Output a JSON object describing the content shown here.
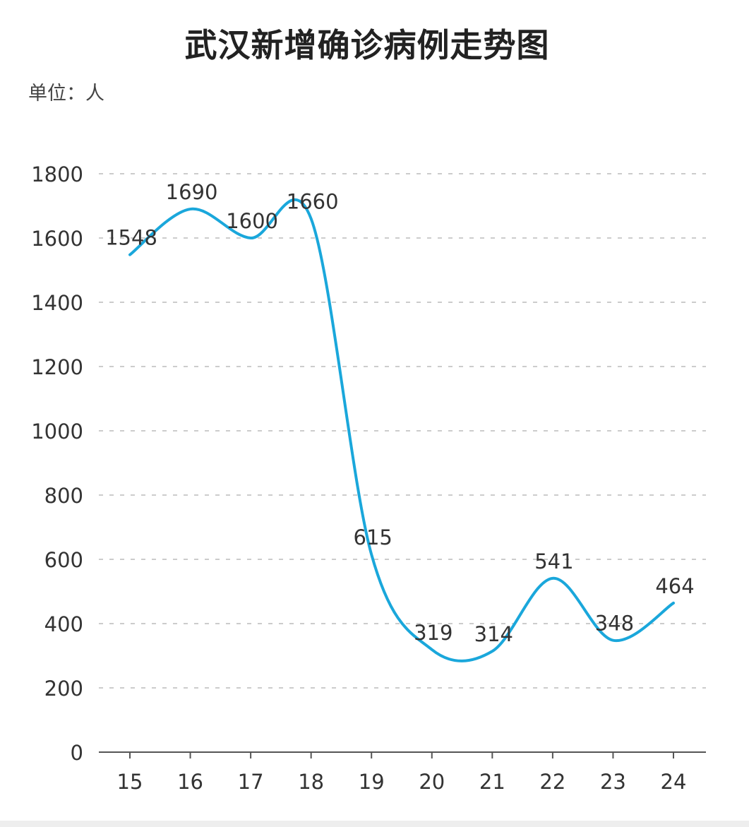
{
  "title": "武汉新增确诊病例走势图",
  "unit_label": "单位：人",
  "colors": {
    "line": "#1aa7db",
    "grid": "#cccccc",
    "axis": "#555555",
    "text": "#333333"
  },
  "chart_data": {
    "type": "line",
    "title": "武汉新增确诊病例走势图",
    "ylabel": "单位：人",
    "xlabel": "",
    "categories": [
      "15",
      "16",
      "17",
      "18",
      "19",
      "20",
      "21",
      "22",
      "23",
      "24"
    ],
    "series": [
      {
        "name": "新增确诊",
        "values": [
          1548,
          1690,
          1600,
          1660,
          615,
          319,
          314,
          541,
          348,
          464
        ],
        "smooth": true
      }
    ],
    "ylim": [
      0,
      1800
    ],
    "yticks": [
      0,
      200,
      400,
      600,
      800,
      1000,
      1200,
      1400,
      1600,
      1800
    ],
    "grid": true,
    "legend": "none"
  }
}
